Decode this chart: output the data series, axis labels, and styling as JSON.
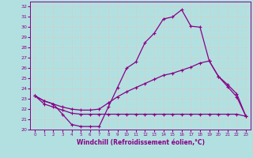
{
  "background_color": "#b2e0e0",
  "grid_color": "#d0d0d0",
  "line_color": "#880088",
  "xlim": [
    -0.5,
    23.5
  ],
  "ylim": [
    20,
    32.5
  ],
  "xlabel": "Windchill (Refroidissement éolien,°C)",
  "yticks": [
    20,
    21,
    22,
    23,
    24,
    25,
    26,
    27,
    28,
    29,
    30,
    31,
    32
  ],
  "xticks": [
    0,
    1,
    2,
    3,
    4,
    5,
    6,
    7,
    8,
    9,
    10,
    11,
    12,
    13,
    14,
    15,
    16,
    17,
    18,
    19,
    20,
    21,
    22,
    23
  ],
  "line1_x": [
    0,
    1,
    2,
    3,
    4,
    5,
    6,
    7,
    8,
    9,
    10,
    11,
    12,
    13,
    14,
    15,
    16,
    17,
    18,
    19,
    20,
    21,
    22,
    23
  ],
  "line1_y": [
    23.3,
    22.8,
    22.5,
    21.5,
    20.5,
    20.3,
    20.3,
    20.3,
    22.2,
    24.1,
    26.0,
    26.6,
    28.5,
    29.4,
    30.8,
    31.0,
    31.7,
    30.1,
    30.0,
    26.7,
    25.2,
    24.2,
    23.2,
    21.3
  ],
  "line2_x": [
    0,
    1,
    2,
    3,
    4,
    5,
    6,
    7,
    8,
    9,
    10,
    11,
    12,
    13,
    14,
    15,
    16,
    17,
    18,
    19,
    20,
    21,
    22,
    23
  ],
  "line2_y": [
    23.3,
    22.8,
    22.5,
    22.2,
    22.0,
    21.9,
    21.9,
    22.0,
    22.6,
    23.2,
    23.7,
    24.1,
    24.5,
    24.9,
    25.3,
    25.5,
    25.8,
    26.1,
    26.5,
    26.7,
    25.2,
    24.4,
    23.5,
    21.3
  ],
  "line3_x": [
    0,
    1,
    2,
    3,
    4,
    5,
    6,
    7,
    8,
    9,
    10,
    11,
    12,
    13,
    14,
    15,
    16,
    17,
    18,
    19,
    20,
    21,
    22,
    23
  ],
  "line3_y": [
    23.3,
    22.5,
    22.2,
    21.9,
    21.6,
    21.5,
    21.5,
    21.5,
    21.5,
    21.5,
    21.5,
    21.5,
    21.5,
    21.5,
    21.5,
    21.5,
    21.5,
    21.5,
    21.5,
    21.5,
    21.5,
    21.5,
    21.5,
    21.3
  ]
}
